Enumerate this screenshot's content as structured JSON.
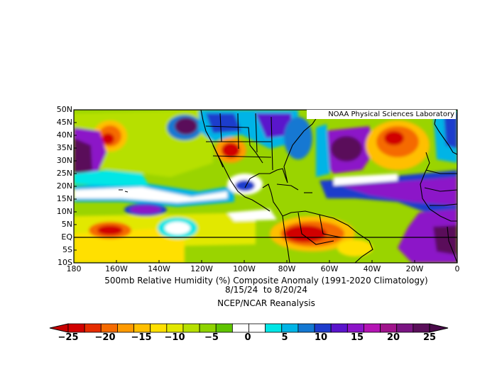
{
  "map": {
    "credit": "NOAA Physical Sciences Laboratory",
    "lat_labels": [
      "50N",
      "45N",
      "40N",
      "35N",
      "30N",
      "25N",
      "20N",
      "15N",
      "10N",
      "5N",
      "EQ",
      "5S",
      "10S"
    ],
    "lon_labels": [
      "180",
      "160W",
      "140W",
      "120W",
      "100W",
      "80W",
      "60W",
      "40W",
      "20W",
      "0"
    ],
    "region": {
      "lat_range": [
        -10,
        50
      ],
      "lon_range": [
        -180,
        0
      ]
    }
  },
  "caption": {
    "title": "500mb Relative Humidity (%) Composite Anomaly (1991-2020 Climatology)",
    "dates": "8/15/24  to 8/20/24",
    "source": "NCEP/NCAR Reanalysis"
  },
  "colorbar": {
    "labels": [
      "−25",
      "−20",
      "−15",
      "−10",
      "−5",
      "0",
      "5",
      "10",
      "15",
      "20",
      "25"
    ],
    "colors": [
      "#d10000",
      "#e62c00",
      "#f56a00",
      "#ff9a00",
      "#ffbf00",
      "#ffe000",
      "#e2e800",
      "#b6e000",
      "#8ed400",
      "#5fc400",
      "#ffffff",
      "#ffffff",
      "#00e6e6",
      "#00b4e6",
      "#1478d2",
      "#1e3ccc",
      "#5a14cc",
      "#8c14c8",
      "#b414b4",
      "#a0148c",
      "#7a1482",
      "#5a0f5a"
    ],
    "left_cap": "#c80000",
    "right_cap": "#4a0a4a"
  }
}
